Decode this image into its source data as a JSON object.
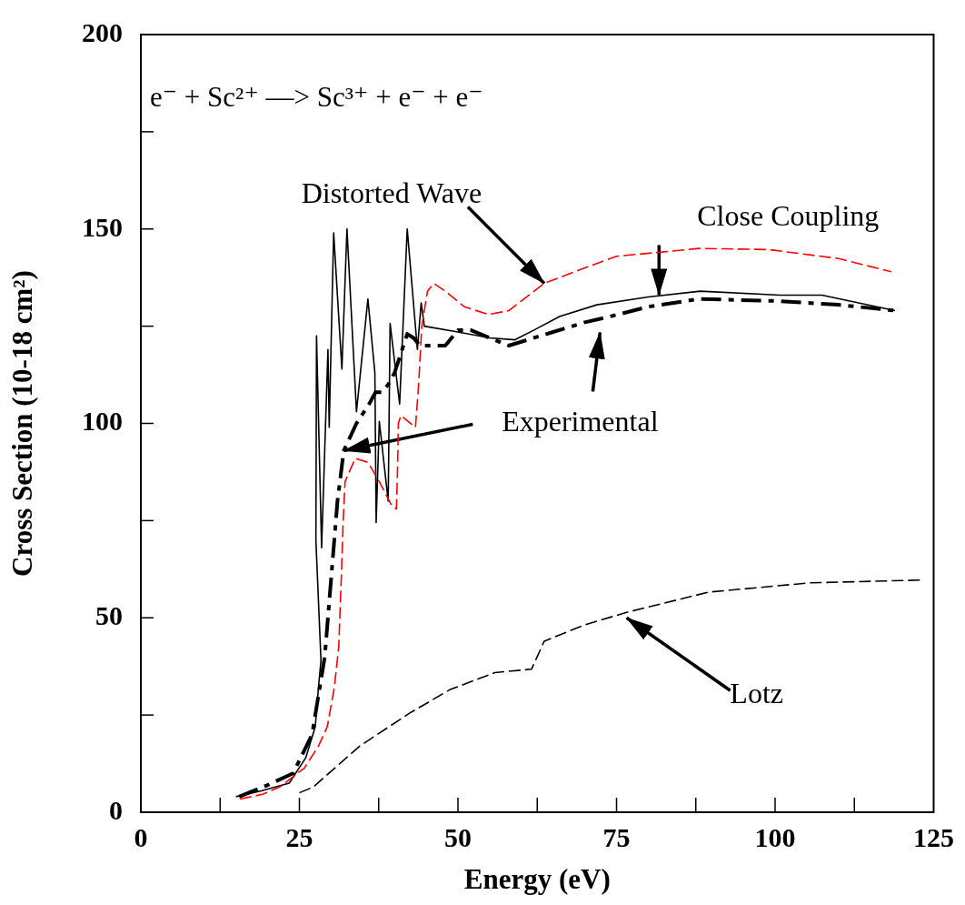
{
  "chart_data": {
    "type": "line",
    "title": "e⁻ + Sc²⁺ —> Sc³⁺ + e⁻ + e⁻",
    "xlabel": "Energy (eV)",
    "ylabel": "Cross Section (10-18 cm²)",
    "xlim": [
      0,
      125
    ],
    "ylim": [
      0,
      200
    ],
    "xticks": [
      0,
      {
        "value": 12.5,
        "label": null
      },
      25,
      {
        "value": 37.5,
        "label": null
      },
      50,
      {
        "value": 62.5,
        "label": null
      },
      75,
      {
        "value": 87.5,
        "label": null
      },
      100,
      {
        "value": 112.5,
        "label": null
      },
      125
    ],
    "yticks": [
      0,
      {
        "value": 25,
        "label": null
      },
      50,
      {
        "value": 75,
        "label": null
      },
      100,
      {
        "value": 125,
        "label": null
      },
      150,
      {
        "value": 175,
        "label": null
      },
      200
    ],
    "grid": false,
    "legend": false,
    "marker": "none",
    "series": [
      {
        "color": "#ff0000",
        "line_style": "dashed",
        "x": [
          15.6,
          19.2,
          22,
          25.8,
          28,
          29.4,
          30.5,
          31.2,
          31.6,
          31.9,
          32.2,
          33.8,
          35.8,
          37.6,
          39.5,
          40.3,
          40.5,
          40.6,
          41,
          43.3,
          43.8,
          44.3,
          45.2,
          46.2,
          48,
          51,
          54.8,
          58,
          63.6,
          70,
          75,
          81.7,
          88,
          99,
          110,
          118.3
        ],
        "values": [
          3.4,
          4.6,
          6.6,
          11.4,
          17,
          22,
          32,
          42.5,
          60,
          75,
          85,
          91,
          90,
          85,
          79,
          78,
          90,
          100,
          102,
          99,
          110,
          125,
          134,
          136,
          134,
          130,
          128,
          129,
          136,
          140,
          143,
          144,
          145,
          144.7,
          142.4,
          139
        ]
      },
      {
        "color": "#000000",
        "line_style": "solid",
        "x": [
          15,
          19,
          23.4,
          26,
          27.5,
          28,
          28.4,
          27.6,
          27.7,
          28.5,
          29.5,
          29.7,
          30.4,
          31.7,
          32.5,
          34,
          35.8,
          36.9,
          37.1,
          37.6,
          39,
          39.3,
          40.8,
          42,
          43.6,
          44.2,
          44.7,
          50,
          55,
          59,
          62,
          66,
          71.9,
          80,
          88.2,
          100.8,
          107.4,
          118.9
        ],
        "values": [
          4,
          5.5,
          7.5,
          14,
          22,
          32,
          39,
          70,
          122.5,
          68,
          119,
          99,
          149,
          114,
          150,
          103,
          132,
          113,
          74.5,
          100.5,
          80,
          125.7,
          105,
          150,
          119,
          131,
          125,
          123.5,
          122,
          121.5,
          124,
          127.5,
          130.5,
          132.5,
          134,
          133,
          133,
          129
        ]
      },
      {
        "color": "#000000",
        "line_style": "dashed",
        "x": [
          15.5,
          20,
          24,
          27,
          29,
          30,
          31,
          32,
          34,
          36,
          37,
          38,
          39,
          40,
          41,
          42,
          43,
          44,
          46,
          48,
          50,
          52,
          55,
          58,
          60,
          65,
          70,
          74,
          80,
          88,
          100,
          110,
          119
        ],
        "values": [
          4,
          7,
          10,
          20,
          40,
          60,
          80,
          93,
          100,
          105,
          108,
          108,
          110,
          113,
          118,
          123,
          122,
          120,
          120,
          120,
          124,
          124,
          122,
          120,
          121,
          123.5,
          126,
          127.5,
          130,
          132,
          131.5,
          130.5,
          129
        ]
      },
      {
        "color": "#000000",
        "line_style": "dashed",
        "x": [
          25,
          27.2,
          34.5,
          42.3,
          48.7,
          55.8,
          61.6,
          63.6,
          70,
          76.6,
          89.5,
          105.5,
          123
        ],
        "values": [
          5,
          6.5,
          17,
          25.4,
          31.5,
          35.9,
          36.8,
          44,
          48.2,
          51.4,
          56.6,
          59,
          59.7
        ]
      }
    ],
    "annotations": [
      {
        "text": "Distorted Wave",
        "x": 63.6,
        "y": 136
      },
      {
        "text": "Close Coupling",
        "x": 81.7,
        "y": 133
      },
      {
        "text": "Experimental",
        "x": 32,
        "y": 93
      },
      {
        "text": "Lotz",
        "x": 76.6,
        "y": 50
      }
    ]
  }
}
